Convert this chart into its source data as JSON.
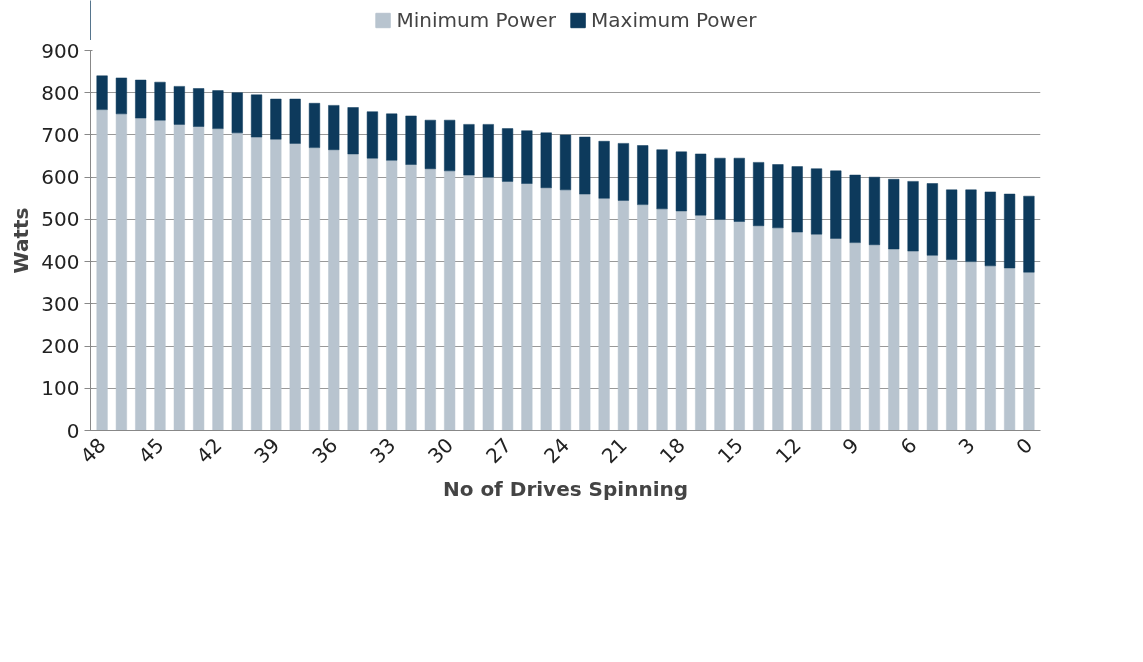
{
  "chart_data": {
    "type": "bar",
    "stacked": true,
    "xlabel": "No of Drives Spinning",
    "ylabel": "Watts",
    "categories": [
      "48",
      null,
      null,
      "45",
      null,
      null,
      "42",
      null,
      null,
      "39",
      null,
      null,
      "36",
      null,
      null,
      "33",
      null,
      null,
      "30",
      null,
      null,
      "27",
      null,
      null,
      "24",
      null,
      null,
      "21",
      null,
      null,
      "18",
      null,
      null,
      "15",
      null,
      null,
      "12",
      null,
      null,
      "9",
      null,
      null,
      "6",
      null,
      null,
      "3",
      null,
      null,
      "0"
    ],
    "series": [
      {
        "name": "Minimum Power",
        "color": "#b8c4cf",
        "values": [
          760,
          750,
          740,
          735,
          725,
          720,
          715,
          705,
          695,
          690,
          680,
          670,
          665,
          655,
          645,
          640,
          630,
          620,
          615,
          605,
          600,
          590,
          585,
          575,
          570,
          560,
          550,
          545,
          535,
          525,
          520,
          510,
          500,
          495,
          485,
          480,
          470,
          465,
          455,
          445,
          440,
          430,
          425,
          415,
          405,
          400,
          390,
          385,
          375
        ]
      },
      {
        "name": "Maximum Power",
        "color": "#0d3a5c",
        "values": [
          80,
          85,
          90,
          90,
          90,
          90,
          90,
          95,
          100,
          95,
          105,
          105,
          105,
          110,
          110,
          110,
          115,
          115,
          120,
          120,
          125,
          125,
          125,
          130,
          130,
          135,
          135,
          135,
          140,
          140,
          140,
          145,
          145,
          150,
          150,
          150,
          155,
          155,
          160,
          160,
          160,
          165,
          165,
          170,
          165,
          170,
          175,
          175,
          180
        ]
      }
    ],
    "ylim": [
      0,
      900
    ],
    "yticks": [
      0,
      100,
      200,
      300,
      400,
      500,
      600,
      700,
      800,
      900
    ],
    "grid": "y",
    "legend": "top"
  }
}
